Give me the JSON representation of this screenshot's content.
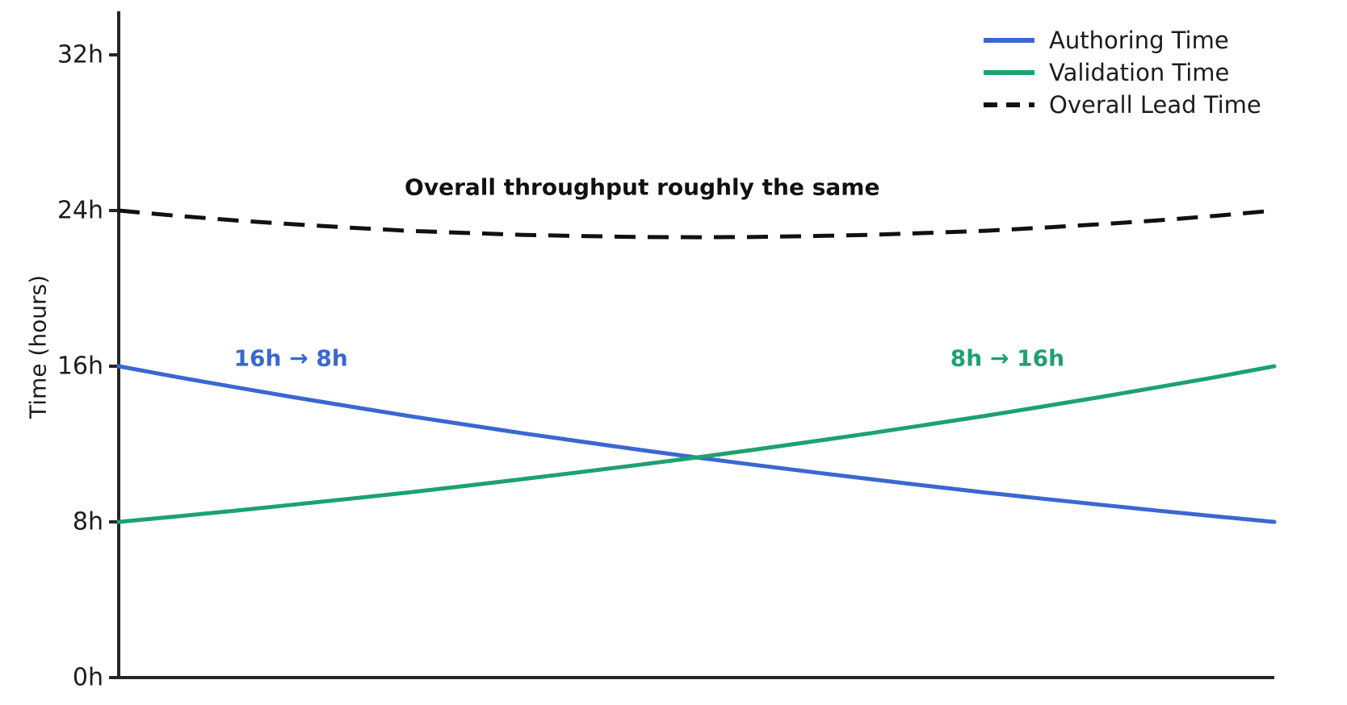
{
  "figure": {
    "background": "#ffffff",
    "axis_color": "#262626",
    "text_color": "#1c1c1c"
  },
  "chart_data": {
    "type": "line",
    "title": "",
    "xlabel": "",
    "ylabel": "Time (hours)",
    "ylim": [
      0,
      34
    ],
    "xlim": [
      0,
      1
    ],
    "grid": false,
    "legend_position": "upper right",
    "yticks": [
      {
        "value": 0,
        "label": "0h"
      },
      {
        "value": 8,
        "label": "8h"
      },
      {
        "value": 16,
        "label": "16h"
      },
      {
        "value": 24,
        "label": "24h"
      },
      {
        "value": 32,
        "label": "32h"
      }
    ],
    "x": [
      0,
      0.05,
      0.1,
      0.15,
      0.2,
      0.25,
      0.3,
      0.35,
      0.4,
      0.45,
      0.5,
      0.55,
      0.6,
      0.65,
      0.7,
      0.75,
      0.8,
      0.85,
      0.9,
      0.95,
      1
    ],
    "series": [
      {
        "name": "Authoring Time",
        "color": "#3b67d1",
        "line_style": "solid",
        "start_value_hours": 16,
        "end_value_hours": 8,
        "values": [
          16,
          15.45,
          14.93,
          14.42,
          13.93,
          13.45,
          13.0,
          12.55,
          12.13,
          11.71,
          11.31,
          10.93,
          10.56,
          10.2,
          9.85,
          9.51,
          9.19,
          8.88,
          8.57,
          8.28,
          8
        ]
      },
      {
        "name": "Validation Time",
        "color": "#1da26f",
        "line_style": "solid",
        "start_value_hours": 8,
        "end_value_hours": 16,
        "values": [
          8,
          8.28,
          8.57,
          8.88,
          9.19,
          9.51,
          9.85,
          10.2,
          10.56,
          10.93,
          11.31,
          11.71,
          12.13,
          12.55,
          13.0,
          13.45,
          13.93,
          14.42,
          14.93,
          15.45,
          16
        ]
      },
      {
        "name": "Overall Lead Time",
        "color": "#111111",
        "line_style": "dashed",
        "start_value_hours": 24,
        "end_value_hours": 24,
        "values": [
          24,
          23.73,
          23.5,
          23.3,
          23.12,
          22.96,
          22.85,
          22.75,
          22.69,
          22.64,
          22.63,
          22.64,
          22.69,
          22.75,
          22.85,
          22.96,
          23.12,
          23.3,
          23.5,
          23.73,
          24
        ]
      }
    ],
    "annotations": [
      {
        "id": "throughput-note",
        "text": "Overall throughput roughly the same",
        "color": "#111111",
        "x": 0.453,
        "y": 25.2
      },
      {
        "id": "authoring-shift",
        "text": "16h → 8h",
        "color": "#3b67d1",
        "x": 0.149,
        "y": 16.4
      },
      {
        "id": "validation-shift",
        "text": "8h → 16h",
        "color": "#1da26f",
        "x": 0.769,
        "y": 16.4
      }
    ]
  }
}
